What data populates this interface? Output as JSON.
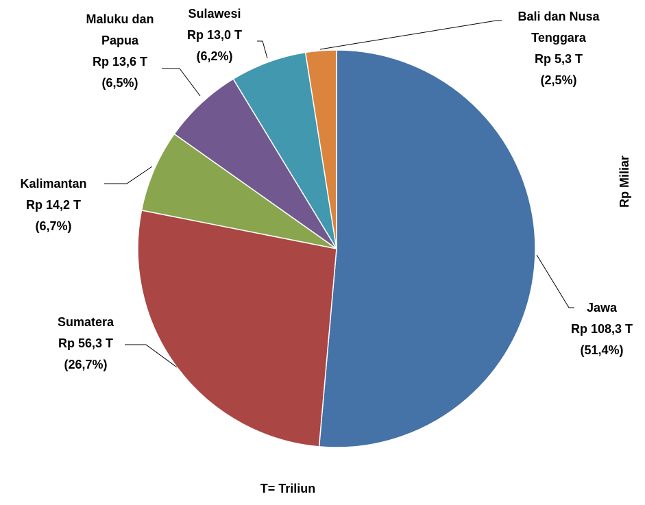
{
  "chart_data": {
    "type": "pie",
    "categories": [
      "Jawa",
      "Sumatera",
      "Kalimantan",
      "Maluku dan Papua",
      "Sulawesi",
      "Bali dan Nusa Tenggara"
    ],
    "values": [
      51.4,
      26.7,
      6.7,
      6.5,
      6.2,
      2.5
    ],
    "value_labels": [
      "(51,4%)",
      "(26,7%)",
      "(6,7%)",
      "(6,5%)",
      "(6,2%)",
      "(2,5%)"
    ],
    "amounts": [
      108.3,
      56.3,
      14.2,
      13.6,
      13.0,
      5.3
    ],
    "amount_labels": [
      "Rp 108,3 T",
      "Rp 56,3 T",
      "Rp 14,2 T",
      "Rp 13,6 T",
      "Rp 13,0 T",
      "Rp 5,3 T"
    ],
    "colors": [
      "#4572a7",
      "#aa4643",
      "#89a54e",
      "#71588f",
      "#4198af",
      "#db843d"
    ],
    "footnote": "T= Triliun",
    "side_axis_label": "Rp Miliar"
  }
}
